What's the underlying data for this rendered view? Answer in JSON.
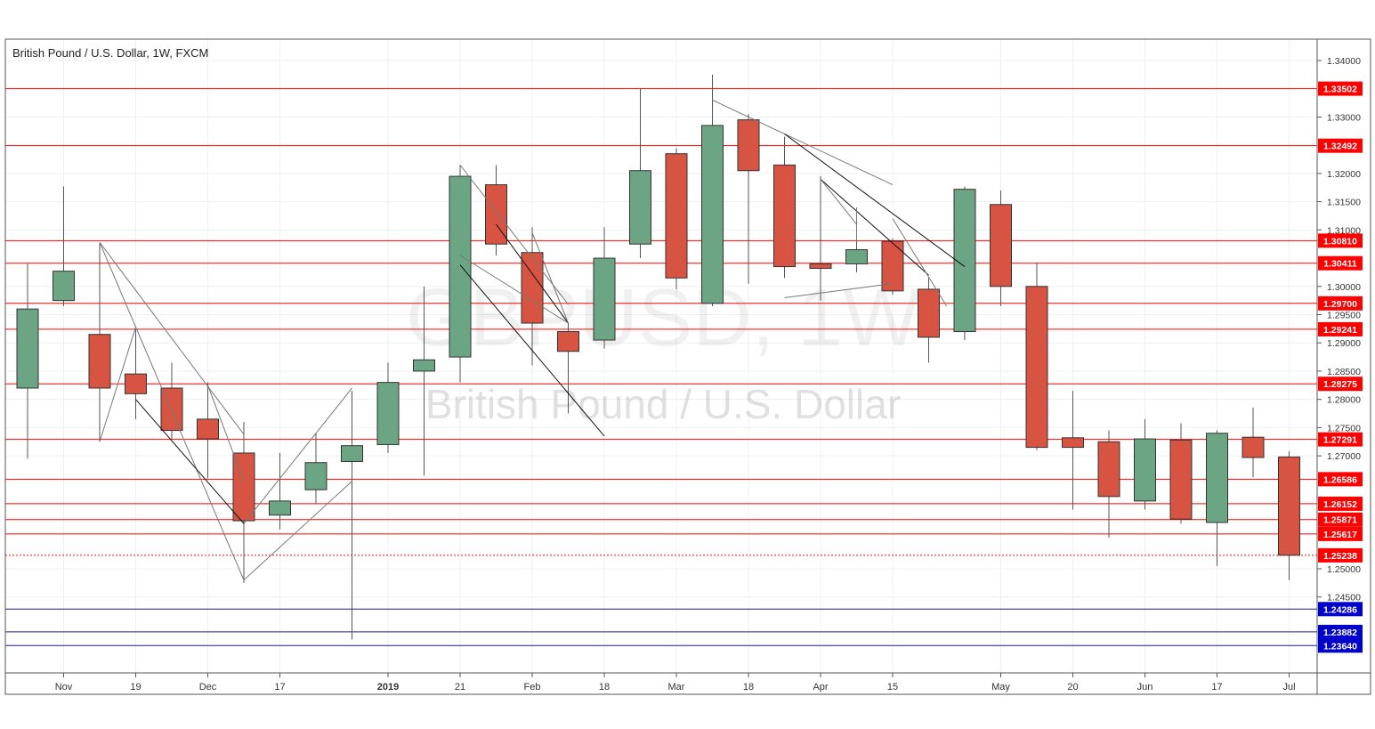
{
  "chart_data": {
    "type": "candlestick",
    "title": "British Pound / U.S. Dollar, 1W, FXCM",
    "watermark": {
      "symbol": "GBPUSD, 1W",
      "name": "British Pound / U.S. Dollar"
    },
    "colors": {
      "up": "#6ba583",
      "down": "#d75442",
      "hline": "#ff0000",
      "hline_blue": "#0000cc",
      "trendline": "#000000"
    },
    "x_labels": [
      {
        "i": 1,
        "text": "Nov"
      },
      {
        "i": 3,
        "text": "19"
      },
      {
        "i": 5,
        "text": "Dec"
      },
      {
        "i": 7,
        "text": "17"
      },
      {
        "i": 10,
        "text": "2019"
      },
      {
        "i": 12,
        "text": "21"
      },
      {
        "i": 14,
        "text": "Feb"
      },
      {
        "i": 16,
        "text": "18"
      },
      {
        "i": 18,
        "text": "Mar"
      },
      {
        "i": 20,
        "text": "18"
      },
      {
        "i": 22,
        "text": "Apr"
      },
      {
        "i": 24,
        "text": "15"
      },
      {
        "i": 27,
        "text": "May"
      },
      {
        "i": 29,
        "text": "20"
      },
      {
        "i": 31,
        "text": "Jun"
      },
      {
        "i": 33,
        "text": "17"
      },
      {
        "i": 35,
        "text": "Jul"
      }
    ],
    "ylim": [
      1.2335,
      1.3425
    ],
    "y_ticks": [
      "1.34000",
      "1.33000",
      "1.32000",
      "1.31500",
      "1.31000",
      "1.30000",
      "1.29500",
      "1.29000",
      "1.28500",
      "1.28000",
      "1.27500",
      "1.27000",
      "1.25000",
      "1.24500"
    ],
    "candles": [
      {
        "o": 1.282,
        "h": 1.304,
        "l": 1.2695,
        "c": 1.296
      },
      {
        "o": 1.2975,
        "h": 1.3177,
        "l": 1.2965,
        "c": 1.3027
      },
      {
        "o": 1.2915,
        "h": 1.3076,
        "l": 1.2725,
        "c": 1.282
      },
      {
        "o": 1.2845,
        "h": 1.2925,
        "l": 1.2765,
        "c": 1.281
      },
      {
        "o": 1.282,
        "h": 1.2865,
        "l": 1.273,
        "c": 1.2745
      },
      {
        "o": 1.2765,
        "h": 1.283,
        "l": 1.266,
        "c": 1.273
      },
      {
        "o": 1.2705,
        "h": 1.276,
        "l": 1.2475,
        "c": 1.2585
      },
      {
        "o": 1.2595,
        "h": 1.2705,
        "l": 1.257,
        "c": 1.262
      },
      {
        "o": 1.264,
        "h": 1.274,
        "l": 1.2615,
        "c": 1.2688
      },
      {
        "o": 1.269,
        "h": 1.2815,
        "l": 1.2375,
        "c": 1.2718
      },
      {
        "o": 1.272,
        "h": 1.2865,
        "l": 1.2705,
        "c": 1.283
      },
      {
        "o": 1.285,
        "h": 1.3,
        "l": 1.2665,
        "c": 1.287
      },
      {
        "o": 1.2875,
        "h": 1.3215,
        "l": 1.283,
        "c": 1.3195
      },
      {
        "o": 1.318,
        "h": 1.3215,
        "l": 1.3055,
        "c": 1.3075
      },
      {
        "o": 1.306,
        "h": 1.3105,
        "l": 1.286,
        "c": 1.2935
      },
      {
        "o": 1.292,
        "h": 1.2935,
        "l": 1.2775,
        "c": 1.2885
      },
      {
        "o": 1.2905,
        "h": 1.3105,
        "l": 1.289,
        "c": 1.305
      },
      {
        "o": 1.3075,
        "h": 1.335,
        "l": 1.305,
        "c": 1.3205
      },
      {
        "o": 1.3235,
        "h": 1.3245,
        "l": 1.2995,
        "c": 1.3015
      },
      {
        "o": 1.297,
        "h": 1.3375,
        "l": 1.2965,
        "c": 1.3285
      },
      {
        "o": 1.3295,
        "h": 1.3305,
        "l": 1.3005,
        "c": 1.3205
      },
      {
        "o": 1.3215,
        "h": 1.3265,
        "l": 1.3015,
        "c": 1.3035
      },
      {
        "o": 1.304,
        "h": 1.3195,
        "l": 1.2975,
        "c": 1.3032
      },
      {
        "o": 1.304,
        "h": 1.313,
        "l": 1.3025,
        "c": 1.3065
      },
      {
        "o": 1.308,
        "h": 1.3085,
        "l": 1.2985,
        "c": 1.2992
      },
      {
        "o": 1.2995,
        "h": 1.3015,
        "l": 1.2865,
        "c": 1.291
      },
      {
        "o": 1.292,
        "h": 1.3177,
        "l": 1.2905,
        "c": 1.3172
      },
      {
        "o": 1.3145,
        "h": 1.317,
        "l": 1.2965,
        "c": 1.3
      },
      {
        "o": 1.3,
        "h": 1.3042,
        "l": 1.271,
        "c": 1.2715
      },
      {
        "o": 1.2732,
        "h": 1.2815,
        "l": 1.2605,
        "c": 1.2715
      },
      {
        "o": 1.2725,
        "h": 1.2745,
        "l": 1.2555,
        "c": 1.2628
      },
      {
        "o": 1.262,
        "h": 1.2765,
        "l": 1.2605,
        "c": 1.273
      },
      {
        "o": 1.2728,
        "h": 1.2758,
        "l": 1.258,
        "c": 1.2588
      },
      {
        "o": 1.2582,
        "h": 1.2745,
        "l": 1.2505,
        "c": 1.274
      },
      {
        "o": 1.2733,
        "h": 1.2785,
        "l": 1.2662,
        "c": 1.2697
      },
      {
        "o": 1.2698,
        "h": 1.2708,
        "l": 1.248,
        "c": 1.2524
      }
    ],
    "levels": [
      {
        "value": 1.33502,
        "label": "1.33502",
        "color": "red",
        "style": "solid"
      },
      {
        "value": 1.32492,
        "label": "1.32492",
        "color": "red",
        "style": "solid"
      },
      {
        "value": 1.3081,
        "label": "1.30810",
        "color": "red",
        "style": "solid"
      },
      {
        "value": 1.30411,
        "label": "1.30411",
        "color": "red",
        "style": "solid"
      },
      {
        "value": 1.297,
        "label": "1.29700",
        "color": "red",
        "style": "solid"
      },
      {
        "value": 1.29241,
        "label": "1.29241",
        "color": "red",
        "style": "solid"
      },
      {
        "value": 1.28275,
        "label": "1.28275",
        "color": "red",
        "style": "solid"
      },
      {
        "value": 1.27291,
        "label": "1.27291",
        "color": "red",
        "style": "solid"
      },
      {
        "value": 1.26586,
        "label": "1.26586",
        "color": "red",
        "style": "solid"
      },
      {
        "value": 1.26152,
        "label": "1.26152",
        "color": "red",
        "style": "solid"
      },
      {
        "value": 1.25871,
        "label": "1.25871",
        "color": "red",
        "style": "solid"
      },
      {
        "value": 1.25617,
        "label": "1.25617",
        "color": "red",
        "style": "solid"
      },
      {
        "value": 1.25238,
        "label": "1.25238",
        "color": "red",
        "style": "dotted"
      },
      {
        "value": 1.24286,
        "label": "1.24286",
        "color": "blue",
        "style": "solid"
      },
      {
        "value": 1.23882,
        "label": "1.23882",
        "color": "blue",
        "style": "solid"
      },
      {
        "value": 1.2364,
        "label": "1.23640",
        "color": "blue",
        "style": "solid"
      }
    ],
    "trendlines": [
      {
        "a": [
          2.0,
          1.3078
        ],
        "b": [
          6.0,
          1.2738
        ],
        "shade": "gray"
      },
      {
        "a": [
          2.0,
          1.3078
        ],
        "b": [
          3.0,
          1.2928
        ],
        "shade": "gray"
      },
      {
        "a": [
          3.0,
          1.2928
        ],
        "b": [
          2.0,
          1.2725
        ],
        "shade": "gray"
      },
      {
        "a": [
          3.0,
          1.2928
        ],
        "b": [
          6.0,
          1.248
        ],
        "shade": "gray"
      },
      {
        "a": [
          3.0,
          1.28
        ],
        "b": [
          6.0,
          1.258
        ],
        "shade": "black"
      },
      {
        "a": [
          6.0,
          1.248
        ],
        "b": [
          9.0,
          1.2655
        ],
        "shade": "gray"
      },
      {
        "a": [
          5.0,
          1.2825
        ],
        "b": [
          6.0,
          1.2655
        ],
        "shade": "gray"
      },
      {
        "a": [
          9.0,
          1.282
        ],
        "b": [
          6.0,
          1.258
        ],
        "shade": "gray"
      },
      {
        "a": [
          12.0,
          1.3215
        ],
        "b": [
          15.0,
          1.2968
        ],
        "shade": "gray"
      },
      {
        "a": [
          12.0,
          1.3055
        ],
        "b": [
          15.0,
          1.2935
        ],
        "shade": "gray"
      },
      {
        "a": [
          12.0,
          1.3038
        ],
        "b": [
          16.0,
          1.2735
        ],
        "shade": "black"
      },
      {
        "a": [
          13.0,
          1.311
        ],
        "b": [
          15.0,
          1.2935
        ],
        "shade": "black"
      },
      {
        "a": [
          14.0,
          1.3095
        ],
        "b": [
          15.0,
          1.2935
        ],
        "shade": "gray"
      },
      {
        "a": [
          19.0,
          1.333
        ],
        "b": [
          24.0,
          1.318
        ],
        "shade": "gray"
      },
      {
        "a": [
          21.0,
          1.327
        ],
        "b": [
          26.0,
          1.3035
        ],
        "shade": "black"
      },
      {
        "a": [
          22.0,
          1.319
        ],
        "b": [
          25.0,
          1.302
        ],
        "shade": "black"
      },
      {
        "a": [
          22.0,
          1.319
        ],
        "b": [
          23.0,
          1.311
        ],
        "shade": "gray"
      },
      {
        "a": [
          21.0,
          1.298
        ],
        "b": [
          24.0,
          1.3005
        ],
        "shade": "gray"
      },
      {
        "a": [
          23.0,
          1.314
        ],
        "b": [
          23.0,
          1.308
        ],
        "shade": "gray"
      },
      {
        "a": [
          24.0,
          1.312
        ],
        "b": [
          25.5,
          1.2965
        ],
        "shade": "gray"
      }
    ]
  }
}
